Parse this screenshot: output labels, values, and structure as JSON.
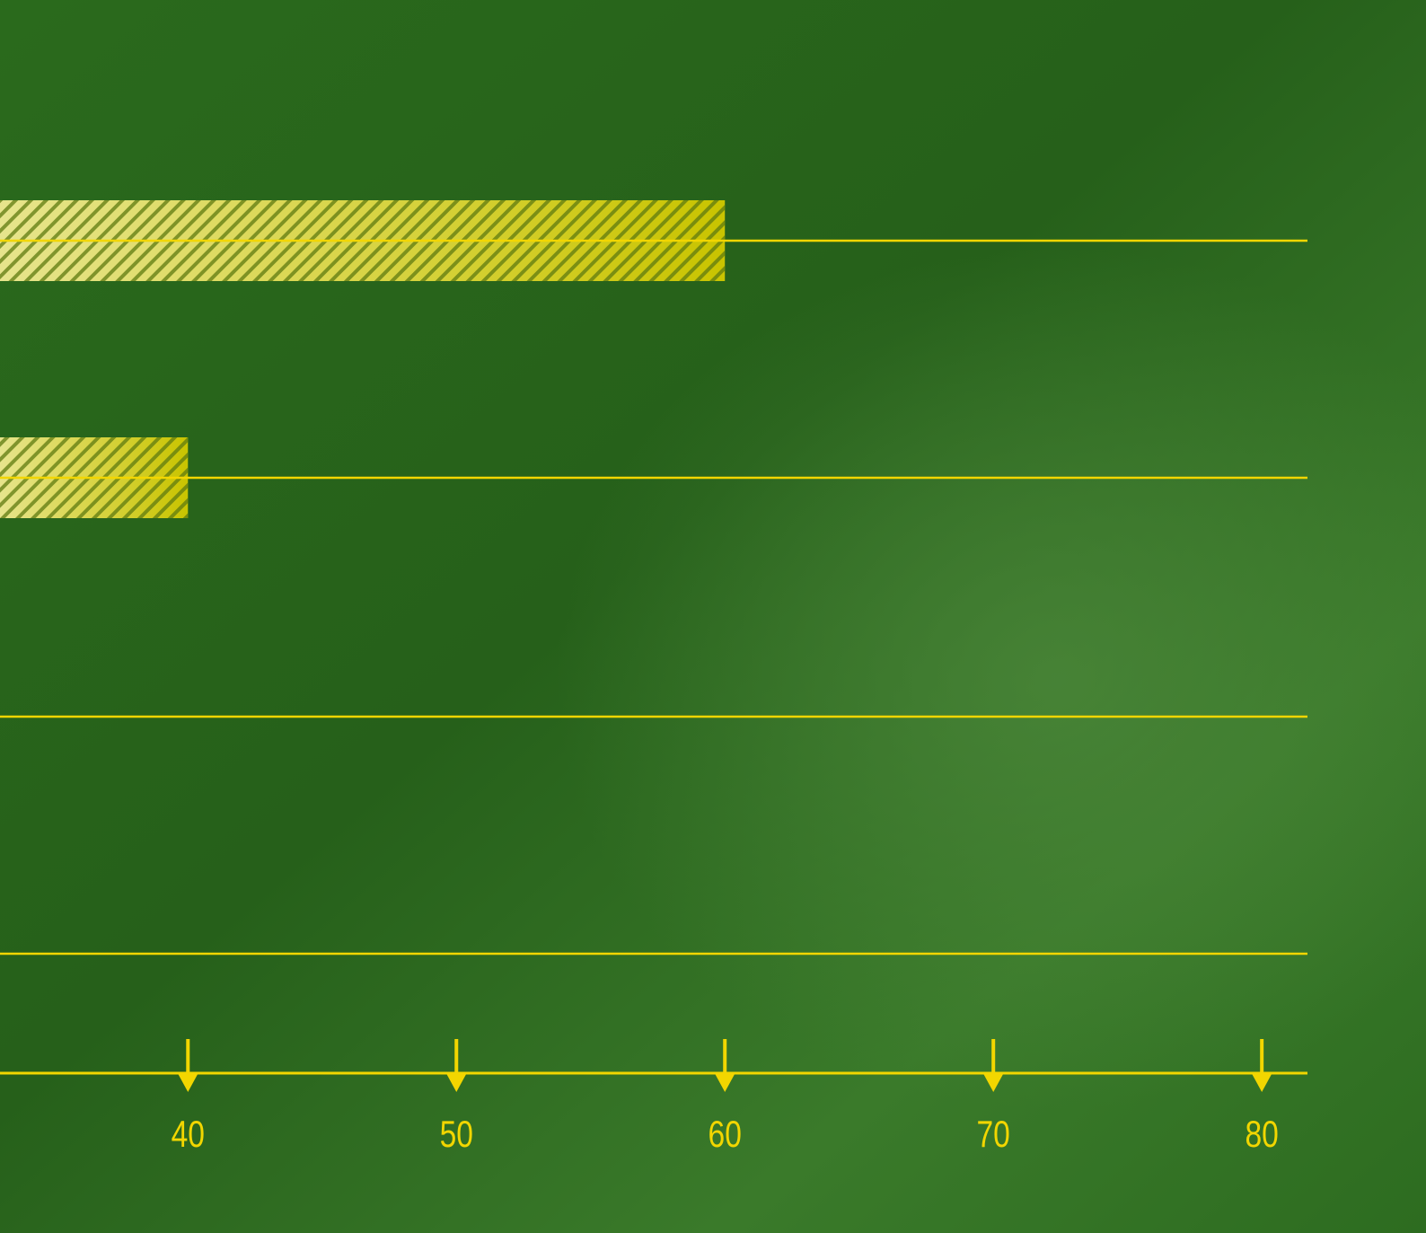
{
  "chart_data": {
    "type": "hbar",
    "categories": [
      null,
      null,
      null,
      null
    ],
    "values": [
      60,
      40,
      null,
      null
    ],
    "color": "#c9c400",
    "xlim": [
      33,
      81.7
    ],
    "xticks": [
      40,
      50,
      60,
      70,
      80
    ]
  }
}
